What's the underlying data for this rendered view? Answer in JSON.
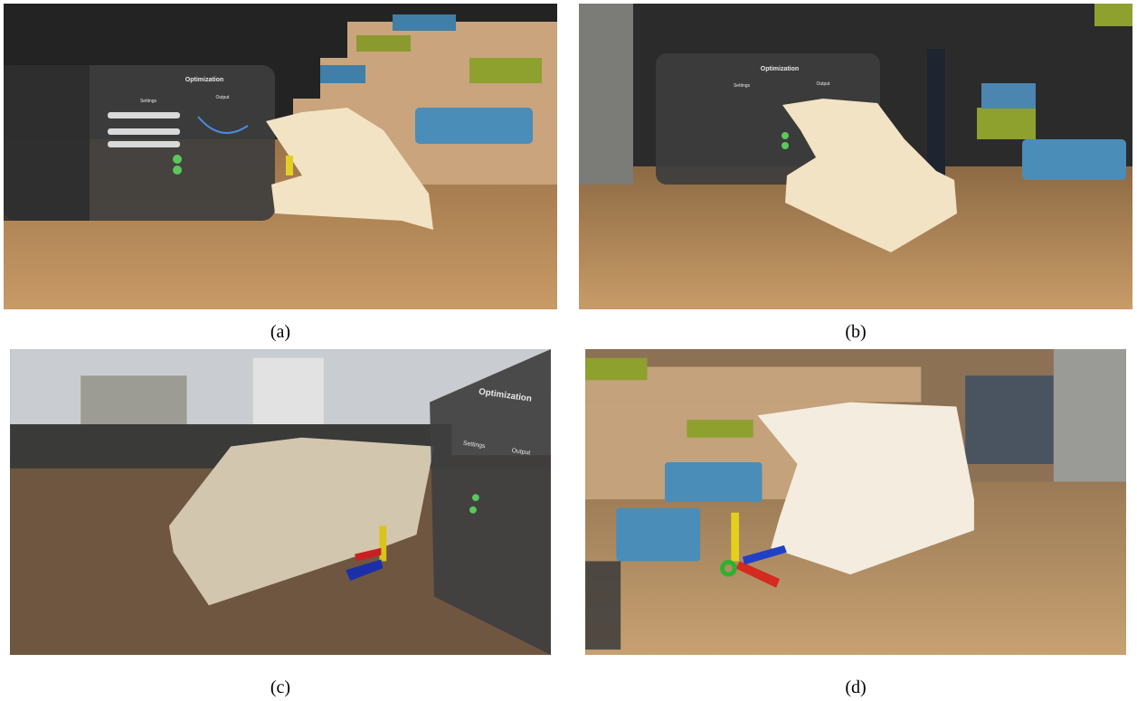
{
  "panels": [
    {
      "caption": "(a)",
      "ui": {
        "title": "Optimization",
        "left_heading": "Settings",
        "right_heading": "Output"
      }
    },
    {
      "caption": "(b)",
      "ui": {
        "title": "Optimization",
        "left_heading": "Settings",
        "right_heading": "Output"
      }
    },
    {
      "caption": "(c)",
      "ui": {
        "title": "Optimization",
        "left_heading": "Settings",
        "right_heading": "Output"
      }
    },
    {
      "caption": "(d)"
    }
  ]
}
